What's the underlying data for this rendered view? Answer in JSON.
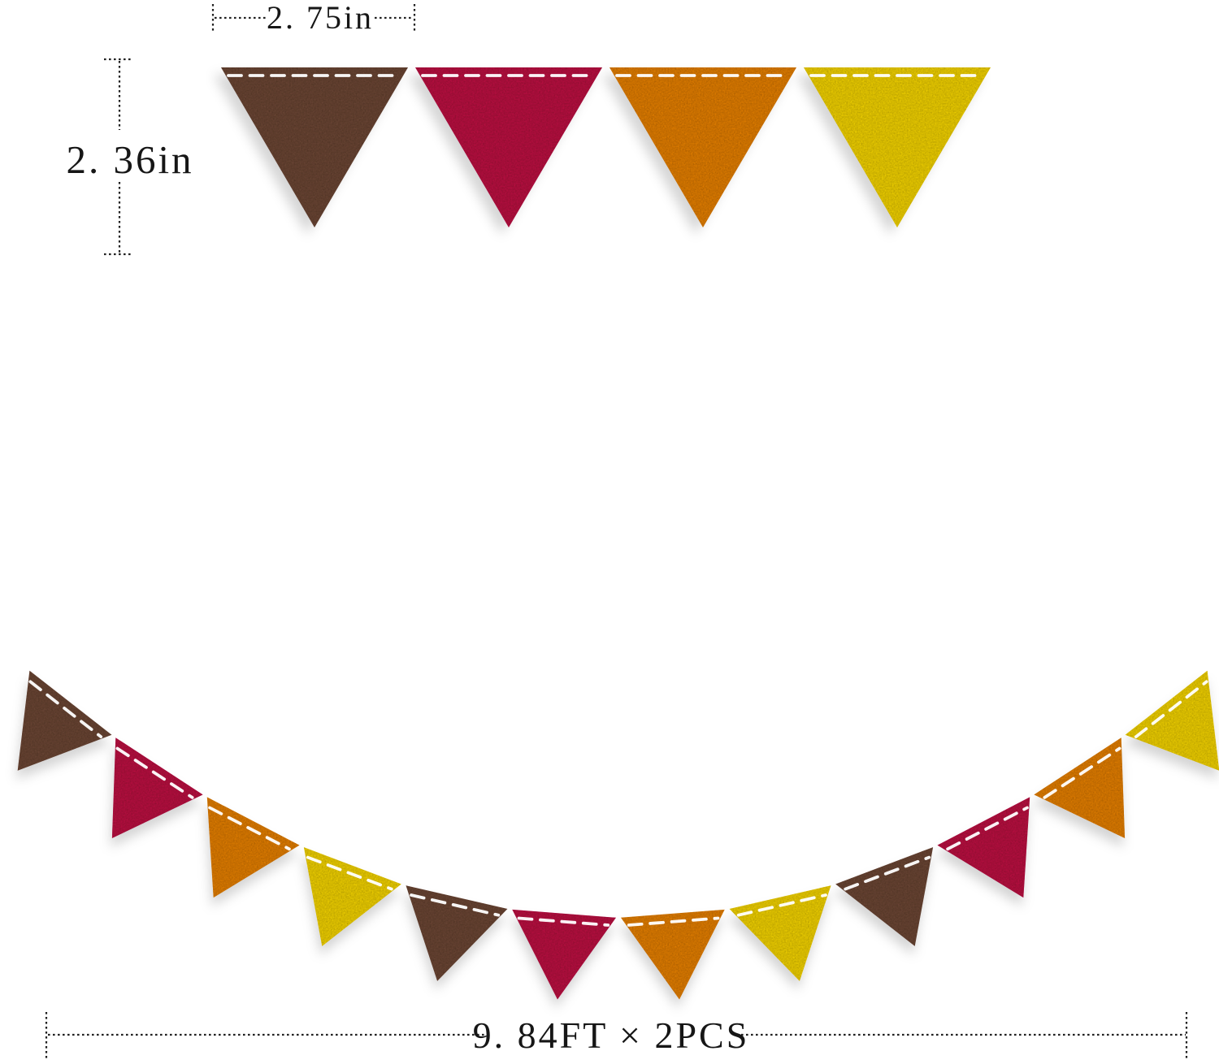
{
  "image": {
    "background": "#ffffff",
    "subject": "felt triangle pennant banner dimension diagram"
  },
  "flags": {
    "palette": {
      "brown": "#6e4839",
      "maroon": "#bf1245",
      "orange": "#e8820f",
      "yellow": "#f6d60e"
    },
    "stitch_color": "#ffffff",
    "top_row_colors": [
      "brown",
      "maroon",
      "orange",
      "yellow"
    ],
    "garland_colors": [
      "brown",
      "maroon",
      "orange",
      "yellow",
      "brown",
      "maroon",
      "orange",
      "yellow",
      "brown",
      "maroon",
      "orange",
      "yellow"
    ]
  },
  "annotations": {
    "line_color": "#222222",
    "flag_width": {
      "label": "2. 75in"
    },
    "flag_height": {
      "label": "2. 36in"
    },
    "banner_length": {
      "label": "9. 84FT × 2PCS"
    }
  }
}
